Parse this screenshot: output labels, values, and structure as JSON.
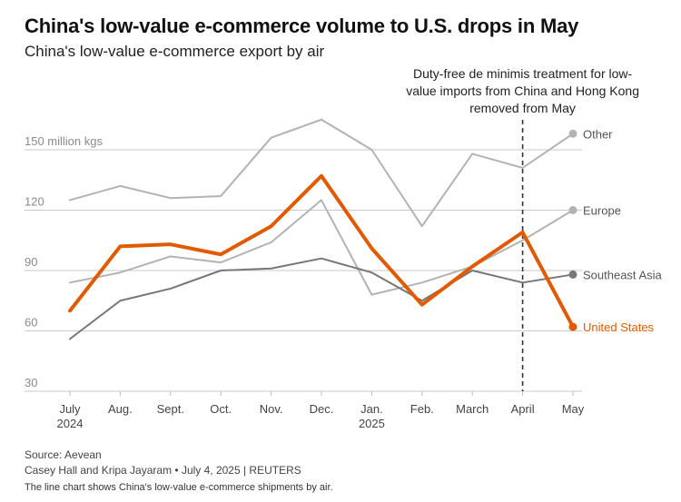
{
  "title": "China's low-value e-commerce volume to U.S. drops in May",
  "subtitle": "China's low-value e-commerce export by air",
  "annotation": {
    "lines": [
      "Duty-free de minimis treatment for low-",
      "value imports from China and Hong Kong",
      "removed from May"
    ],
    "at_category": "April"
  },
  "chart_data": {
    "type": "line",
    "categories": [
      "July",
      "Aug.",
      "Sept.",
      "Oct.",
      "Nov.",
      "Dec.",
      "Jan.",
      "Feb.",
      "March",
      "April",
      "May"
    ],
    "category_sublabels": [
      "2024",
      "",
      "",
      "",
      "",
      "",
      "2025",
      "",
      "",
      "",
      ""
    ],
    "ylim": [
      30,
      160
    ],
    "yticks": [
      30,
      60,
      90,
      120,
      150
    ],
    "ytick_labels": [
      "30",
      "60",
      "90",
      "120",
      "150 million kgs"
    ],
    "grid": true,
    "series": [
      {
        "name": "Other",
        "color": "#b3b3b3",
        "width": 2,
        "values": [
          125,
          132,
          126,
          127,
          156,
          165,
          150,
          112,
          148,
          141,
          158
        ]
      },
      {
        "name": "Europe",
        "color": "#b3b3b3",
        "width": 2,
        "values": [
          84,
          89,
          97,
          94,
          104,
          125,
          78,
          84,
          92,
          105,
          120
        ]
      },
      {
        "name": "Southeast Asia",
        "color": "#777777",
        "width": 2,
        "values": [
          56,
          75,
          81,
          90,
          91,
          96,
          89,
          75,
          90,
          84,
          88
        ]
      },
      {
        "name": "United States",
        "color": "#e05a00",
        "width": 4,
        "values": [
          70,
          102,
          103,
          98,
          112,
          137,
          101,
          73,
          92,
          109,
          62
        ]
      }
    ]
  },
  "footer": {
    "source": "Source: Aevean",
    "credit": "Casey Hall and Kripa Jayaram • July 4, 2025 | REUTERS",
    "description": "The line chart shows China's low-value e-commerce shipments by air."
  }
}
